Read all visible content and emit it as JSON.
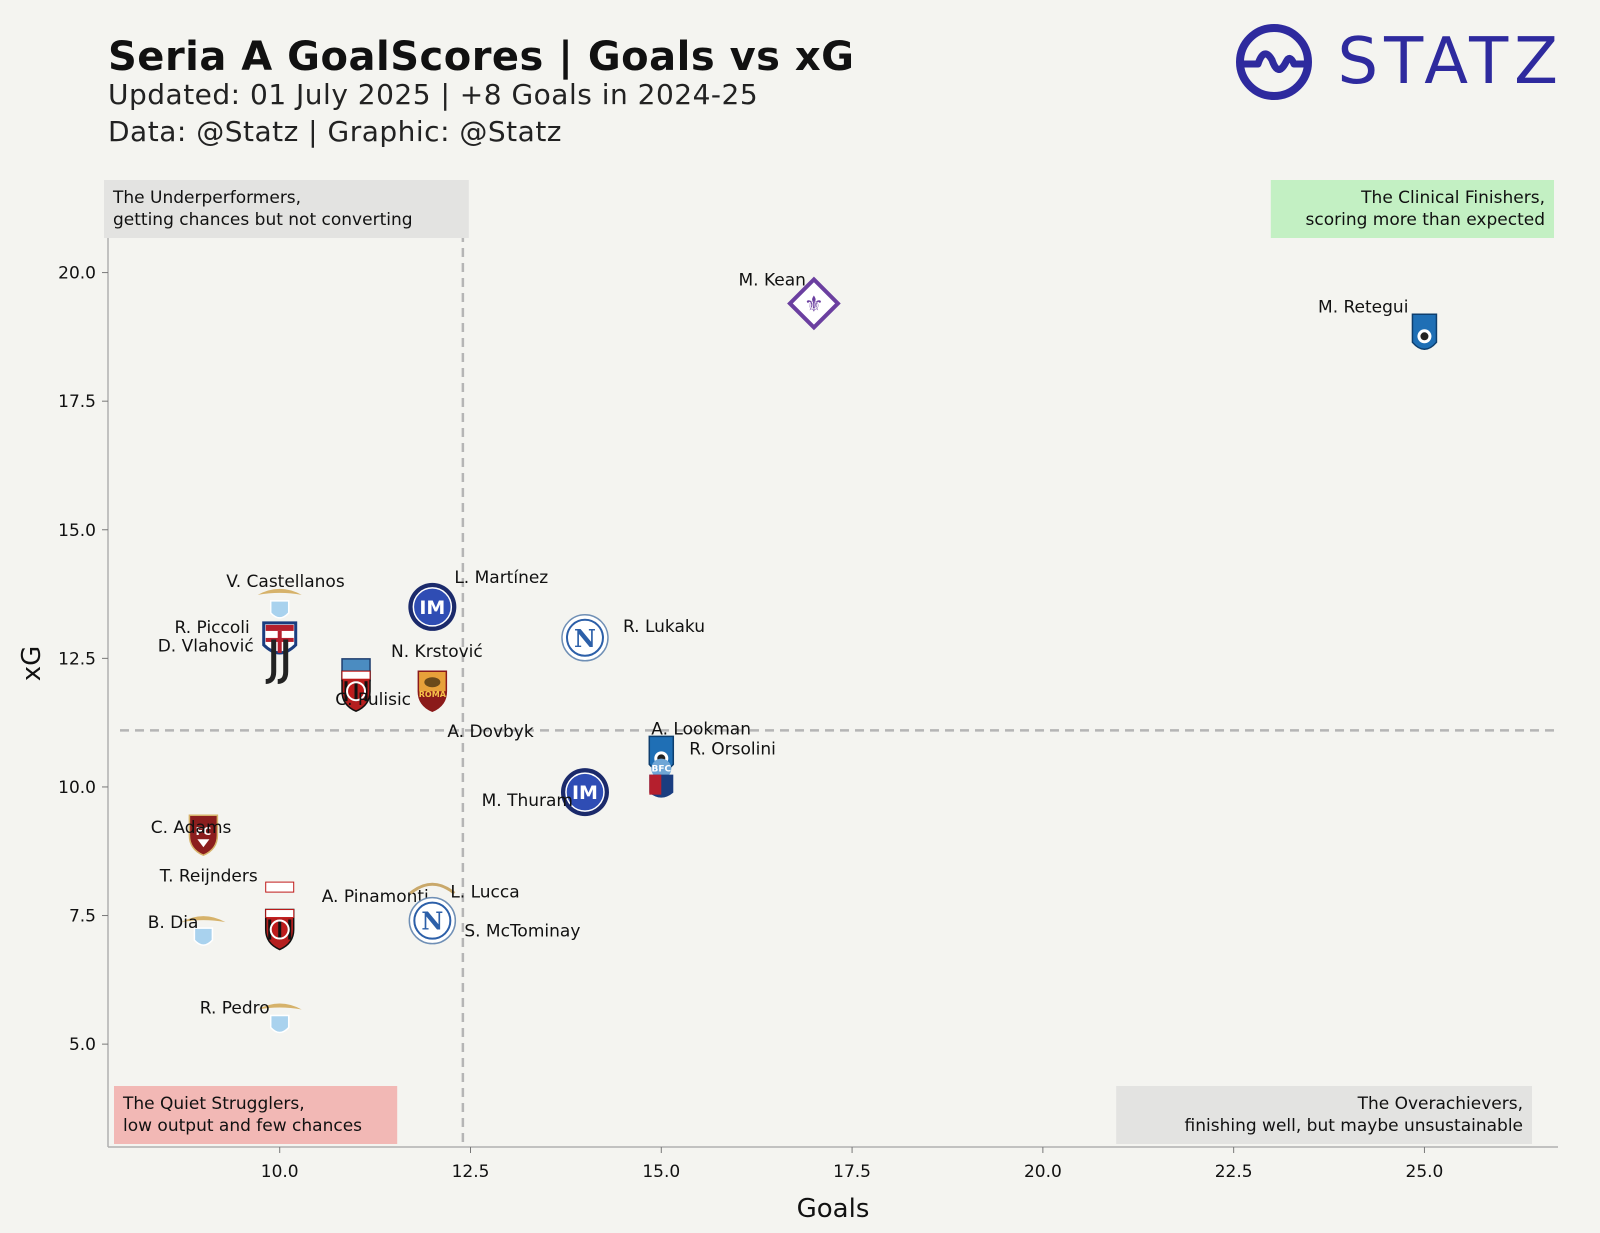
{
  "header": {
    "title": "Seria A GoalScores | Goals vs xG",
    "subtitle_1": "Updated: 01 July 2025 | +8 Goals in 2024-25",
    "subtitle_2": "Data: @Statz | Graphic: @Statz"
  },
  "logo": {
    "text": "STATZ",
    "icon": "statz-wave-logo-icon",
    "color": "#2e2a9e"
  },
  "colors": {
    "background": "#f4f4f0",
    "quadrant_grey": "#e3e3e1",
    "quadrant_green": "#c3f0c3",
    "quadrant_red": "#f2b8b5",
    "reference_line": "#b5b5b5",
    "inter": "#2f4db4",
    "napoli": "#2c5fa8",
    "milan": "#c01a1a",
    "fiorentina": "#6b3fa0",
    "atalanta": "#1f6fb5",
    "lazio": "#a9d2ee",
    "roma": "#e8a13a",
    "torino": "#8b1e1e",
    "bologna": "#1a3d80",
    "juventus": "#222222",
    "cagliari": "#b51f2d"
  },
  "quadrants": {
    "top_left": [
      "The Underperformers,",
      "getting chances but not converting"
    ],
    "top_right": [
      "The Clinical Finishers,",
      "scoring more than expected"
    ],
    "bottom_left": [
      "The Quiet Strugglers,",
      "low output and few chances"
    ],
    "bottom_right": [
      "The Overachievers,",
      "finishing well, but maybe unsustainable"
    ]
  },
  "chart_data": {
    "type": "scatter",
    "title": "Seria A GoalScores | Goals vs xG",
    "xlabel": "Goals",
    "ylabel": "xG",
    "xlim": [
      7.75,
      26.75
    ],
    "ylim": [
      3.0,
      21.8
    ],
    "xticks": [
      "10.0",
      "12.5",
      "15.0",
      "17.5",
      "20.0",
      "22.5",
      "25.0"
    ],
    "yticks": [
      "5.0",
      "7.5",
      "10.0",
      "12.5",
      "15.0",
      "17.5",
      "20.0"
    ],
    "reference_lines": {
      "goals": 12.4,
      "xG": 11.1
    },
    "grid": false,
    "points": [
      {
        "player": "M. Retegui",
        "club": "Atalanta",
        "goals": 25,
        "xg": 18.8
      },
      {
        "player": "M. Kean",
        "club": "Fiorentina",
        "goals": 17,
        "xg": 19.4
      },
      {
        "player": "L. Martínez",
        "club": "Inter",
        "goals": 12,
        "xg": 13.5
      },
      {
        "player": "R. Lukaku",
        "club": "Napoli",
        "goals": 14,
        "xg": 12.9
      },
      {
        "player": "V. Castellanos",
        "club": "Lazio",
        "goals": 10,
        "xg": 13.5
      },
      {
        "player": "R. Piccoli",
        "club": "Cagliari",
        "goals": 10,
        "xg": 12.8
      },
      {
        "player": "D. Vlahović",
        "club": "Juventus",
        "goals": 10,
        "xg": 12.4
      },
      {
        "player": "N. Krstović",
        "club": "Lecce",
        "goals": 11,
        "xg": 12.1
      },
      {
        "player": "C. Pulisic",
        "club": "Milan",
        "goals": 11,
        "xg": 11.9
      },
      {
        "player": "A. Dovbyk",
        "club": "Roma",
        "goals": 12,
        "xg": 11.9
      },
      {
        "player": "A. Lookman",
        "club": "Atalanta",
        "goals": 15,
        "xg": 10.4
      },
      {
        "player": "R. Orsolini",
        "club": "Bologna",
        "goals": 15,
        "xg": 10.2
      },
      {
        "player": "M. Thuram",
        "club": "Inter",
        "goals": 14,
        "xg": 9.9
      },
      {
        "player": "C. Adams",
        "club": "Torino",
        "goals": 9,
        "xg": 9.1
      },
      {
        "player": "A. Pinamonti",
        "club": "Genoa",
        "goals": 10,
        "xg": 7.8
      },
      {
        "player": "T. Reijnders",
        "club": "Milan",
        "goals": 10,
        "xg": 7.5
      },
      {
        "player": "L. Lucca",
        "club": "Udinese",
        "goals": 12,
        "xg": 7.7
      },
      {
        "player": "S. McTominay",
        "club": "Napoli",
        "goals": 12,
        "xg": 7.4
      },
      {
        "player": "B. Dia",
        "club": "Lazio",
        "goals": 9,
        "xg": 7.1
      },
      {
        "player": "R. Pedro",
        "club": "Lazio",
        "goals": 10,
        "xg": 5.4
      }
    ]
  }
}
